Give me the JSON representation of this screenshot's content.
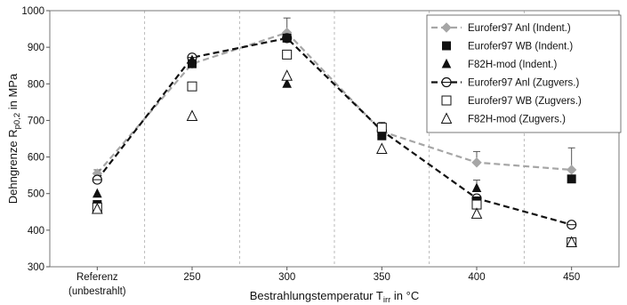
{
  "chart_data": {
    "type": "line",
    "ylabel": {
      "main": "Dehngrenze R",
      "sub": "p0,2",
      "tail": " in MPa"
    },
    "xlabel": {
      "main": "Bestrahlungstemperatur T",
      "sub": "irr",
      "tail": " in °C"
    },
    "categories": [
      {
        "label": "Referenz",
        "label2": "(unbestrahlt)"
      },
      {
        "label": "250",
        "label2": ""
      },
      {
        "label": "300",
        "label2": ""
      },
      {
        "label": "350",
        "label2": ""
      },
      {
        "label": "400",
        "label2": ""
      },
      {
        "label": "450",
        "label2": ""
      }
    ],
    "ylim": [
      300,
      1000
    ],
    "yticks": [
      "300",
      "400",
      "500",
      "600",
      "700",
      "800",
      "900",
      "1000"
    ],
    "grid": {
      "y": false,
      "x": "dashed"
    },
    "legend": {
      "placement": "top-right"
    },
    "series": [
      {
        "name": "Eurofer97 Anl (Indent.)",
        "marker": "diamond",
        "fill": "#a6a6a6",
        "stroke": "#a6a6a6",
        "line": "dashed",
        "line_color": "#a6a6a6",
        "values": [
          555,
          855,
          940,
          670,
          585,
          565
        ],
        "error_plus": [
          10,
          0,
          40,
          25,
          30,
          60
        ]
      },
      {
        "name": "Eurofer97 WB (Indent.)",
        "marker": "square",
        "fill": "#111111",
        "stroke": "#111111",
        "line": "none",
        "values": [
          470,
          855,
          925,
          658,
          480,
          540
        ],
        "error_plus": [
          0,
          0,
          0,
          20,
          0,
          0
        ]
      },
      {
        "name": "F82H-mod (Indent.)",
        "marker": "triangle",
        "fill": "#111111",
        "stroke": "#111111",
        "line": "none",
        "values": [
          500,
          865,
          800,
          670,
          515,
          368
        ],
        "error_plus": [
          0,
          0,
          0,
          0,
          22,
          0
        ]
      },
      {
        "name": "Eurofer97 Anl (Zugvers.)",
        "marker": "circle-half",
        "fill": "#ffffff",
        "stroke": "#111111",
        "line": "dashed",
        "line_color": "#111111",
        "values": [
          538,
          872,
          925,
          672,
          487,
          415
        ],
        "error_plus": [
          0,
          0,
          0,
          0,
          0,
          0
        ]
      },
      {
        "name": "Eurofer97 WB (Zugvers.)",
        "marker": "square-open",
        "fill": "#ffffff",
        "stroke": "#111111",
        "line": "none",
        "values": [
          462,
          793,
          880,
          680,
          470,
          367
        ],
        "error_plus": [
          0,
          0,
          0,
          0,
          0,
          0
        ]
      },
      {
        "name": "F82H-mod (Zugvers.)",
        "marker": "triangle-open",
        "fill": "#ffffff",
        "stroke": "#111111",
        "line": "none",
        "values": [
          458,
          712,
          822,
          622,
          445,
          367
        ],
        "error_plus": [
          0,
          0,
          0,
          0,
          0,
          0
        ]
      }
    ]
  }
}
